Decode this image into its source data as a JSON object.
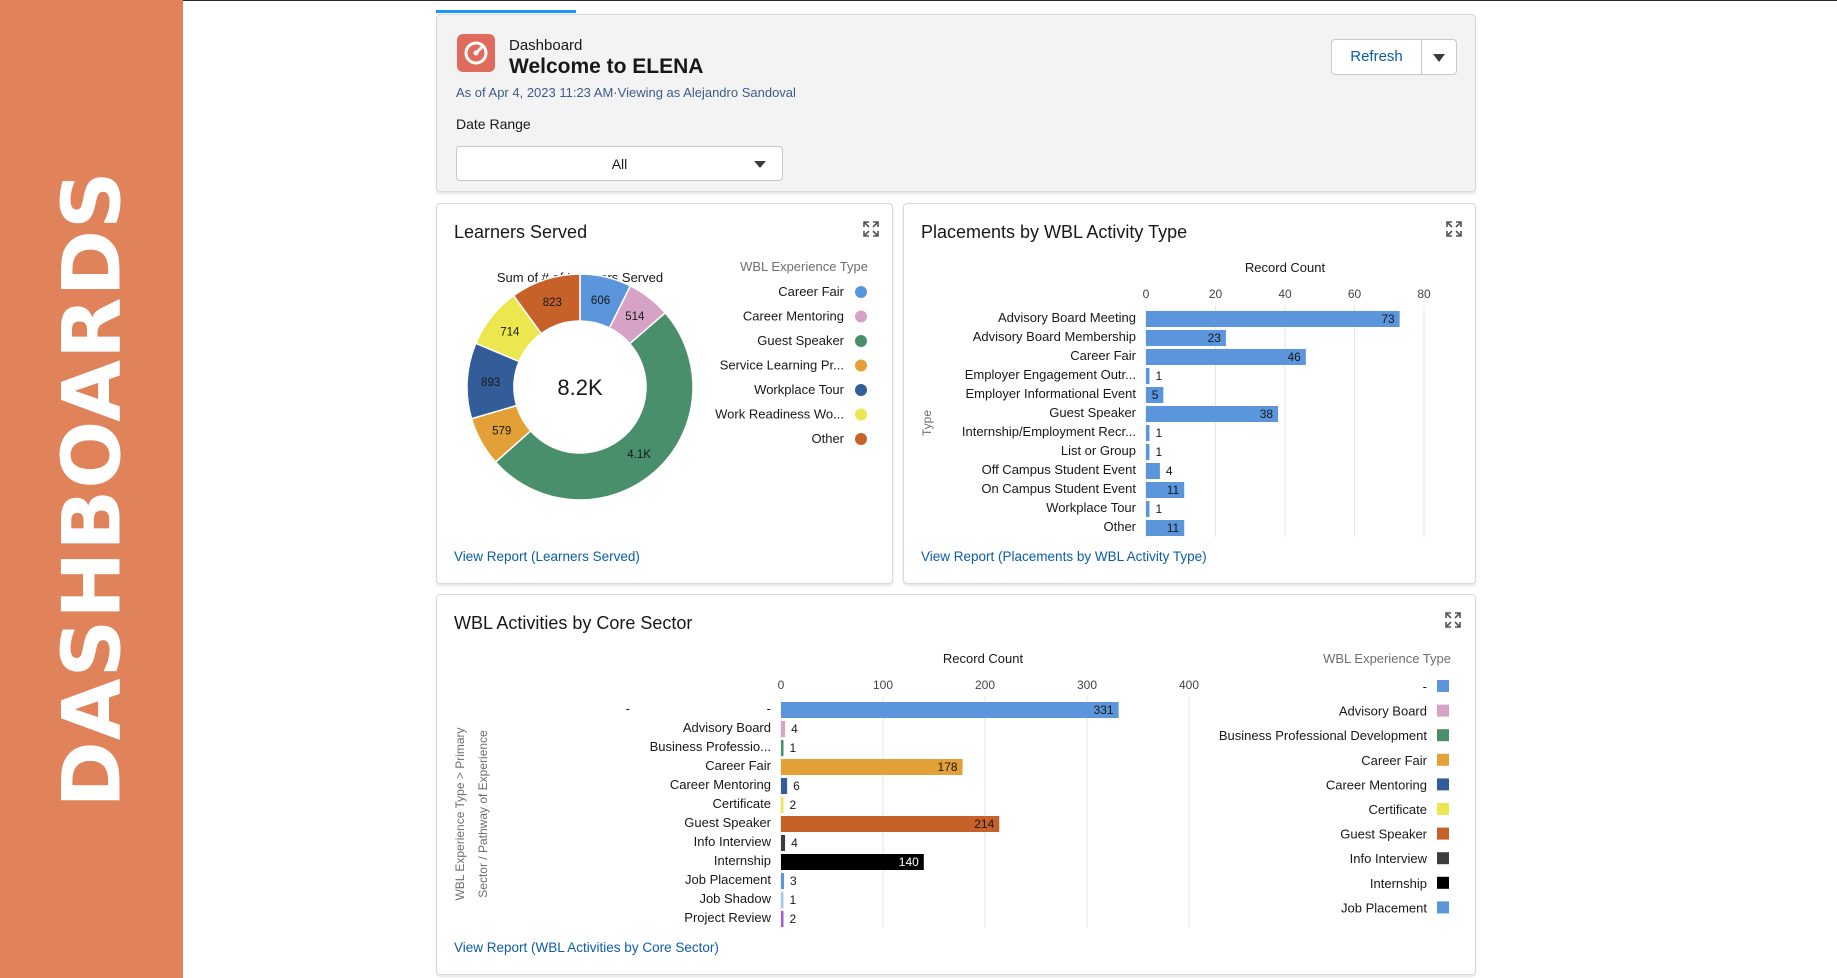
{
  "banner": {
    "text": "DASHBOARDS"
  },
  "header": {
    "eyebrow": "Dashboard",
    "title": "Welcome to ELENA",
    "as_of": "As of Apr 4, 2023 11:23 AM·Viewing as Alejandro Sandoval",
    "refresh_label": "Refresh",
    "date_range_label": "Date Range",
    "date_range_value": "All"
  },
  "chart_data": [
    {
      "id": "learners_served",
      "type": "pie",
      "title": "Learners Served",
      "subtitle": "Sum of # of Learners Served",
      "center_label": "8.2K",
      "legend_title": "WBL Experience Type",
      "legend_placement": "right",
      "view_report": "View Report (Learners Served)",
      "slices": [
        {
          "label": "Career Fair",
          "value": 606,
          "display": "606",
          "color": "#5b96dc"
        },
        {
          "label": "Career Mentoring",
          "value": 514,
          "display": "514",
          "color": "#d6a3c6"
        },
        {
          "label": "Guest Speaker",
          "value": 4100,
          "display": "4.1K",
          "color": "#4a8f6c"
        },
        {
          "label": "Service Learning Pr...",
          "value": 579,
          "display": "579",
          "color": "#e3a037"
        },
        {
          "label": "Workplace Tour",
          "value": 893,
          "display": "893",
          "color": "#325d98"
        },
        {
          "label": "Work Readiness Wo...",
          "value": 714,
          "display": "714",
          "color": "#ede74f"
        },
        {
          "label": "Other",
          "value": 823,
          "display": "823",
          "color": "#c7612a"
        }
      ]
    },
    {
      "id": "placements",
      "type": "bar",
      "orientation": "horizontal",
      "title": "Placements by WBL Activity Type",
      "xlabel": "Record Count",
      "ylabel": "Type",
      "xlim": [
        0,
        80
      ],
      "xticks": [
        0,
        20,
        40,
        60,
        80
      ],
      "grid": true,
      "color": "#5b96dc",
      "view_report": "View Report (Placements by WBL Activity Type)",
      "categories": [
        "Advisory Board Meeting",
        "Advisory Board Membership",
        "Career Fair",
        "Employer Engagement Outr...",
        "Employer Informational Event",
        "Guest Speaker",
        "Internship/Employment Recr...",
        "List or Group",
        "Off Campus Student Event",
        "On Campus Student Event",
        "Workplace Tour",
        "Other"
      ],
      "values": [
        73,
        23,
        46,
        1,
        5,
        38,
        1,
        1,
        4,
        11,
        1,
        11
      ]
    },
    {
      "id": "core_sector",
      "type": "bar",
      "orientation": "horizontal",
      "title": "WBL Activities by Core Sector",
      "xlabel": "Record Count",
      "ylabel_1": "WBL Experience Type > Primary",
      "ylabel_2": "Sector / Pathway of Experience",
      "xlim": [
        0,
        400
      ],
      "xticks": [
        0,
        100,
        200,
        300,
        400
      ],
      "grid": true,
      "legend_title": "WBL Experience Type",
      "legend_placement": "right",
      "view_report": "View Report (WBL Activities by Core Sector)",
      "rows": [
        {
          "group": "-",
          "label": "-",
          "value": 331,
          "color": "#5b96dc"
        },
        {
          "group": "",
          "label": "Advisory Board",
          "value": 4,
          "color": "#d6a3c6"
        },
        {
          "group": "",
          "label": "Business Professio...",
          "value": 1,
          "color": "#4a8f6c"
        },
        {
          "group": "",
          "label": "Career Fair",
          "value": 178,
          "color": "#e3a037"
        },
        {
          "group": "",
          "label": "Career Mentoring",
          "value": 6,
          "color": "#325d98"
        },
        {
          "group": "",
          "label": "Certificate",
          "value": 2,
          "color": "#ede74f"
        },
        {
          "group": "",
          "label": "Guest Speaker",
          "value": 214,
          "color": "#c7612a"
        },
        {
          "group": "",
          "label": "Info Interview",
          "value": 4,
          "color": "#3d3d3d"
        },
        {
          "group": "",
          "label": "Internship",
          "value": 140,
          "color": "#000000"
        },
        {
          "group": "",
          "label": "Job Placement",
          "value": 3,
          "color": "#5b96dc"
        },
        {
          "group": "",
          "label": "Job Shadow",
          "value": 1,
          "color": "#a8c8ef"
        },
        {
          "group": "",
          "label": "Project Review",
          "value": 2,
          "color": "#a55bd6"
        }
      ],
      "legend": [
        {
          "label": "-",
          "color": "#5b96dc"
        },
        {
          "label": "Advisory Board",
          "color": "#d6a3c6"
        },
        {
          "label": "Business Professional Development",
          "color": "#4a8f6c"
        },
        {
          "label": "Career Fair",
          "color": "#e3a037"
        },
        {
          "label": "Career Mentoring",
          "color": "#325d98"
        },
        {
          "label": "Certificate",
          "color": "#ede74f"
        },
        {
          "label": "Guest Speaker",
          "color": "#c7612a"
        },
        {
          "label": "Info Interview",
          "color": "#3d3d3d"
        },
        {
          "label": "Internship",
          "color": "#000000"
        },
        {
          "label": "Job Placement",
          "color": "#5b96dc"
        }
      ]
    }
  ]
}
